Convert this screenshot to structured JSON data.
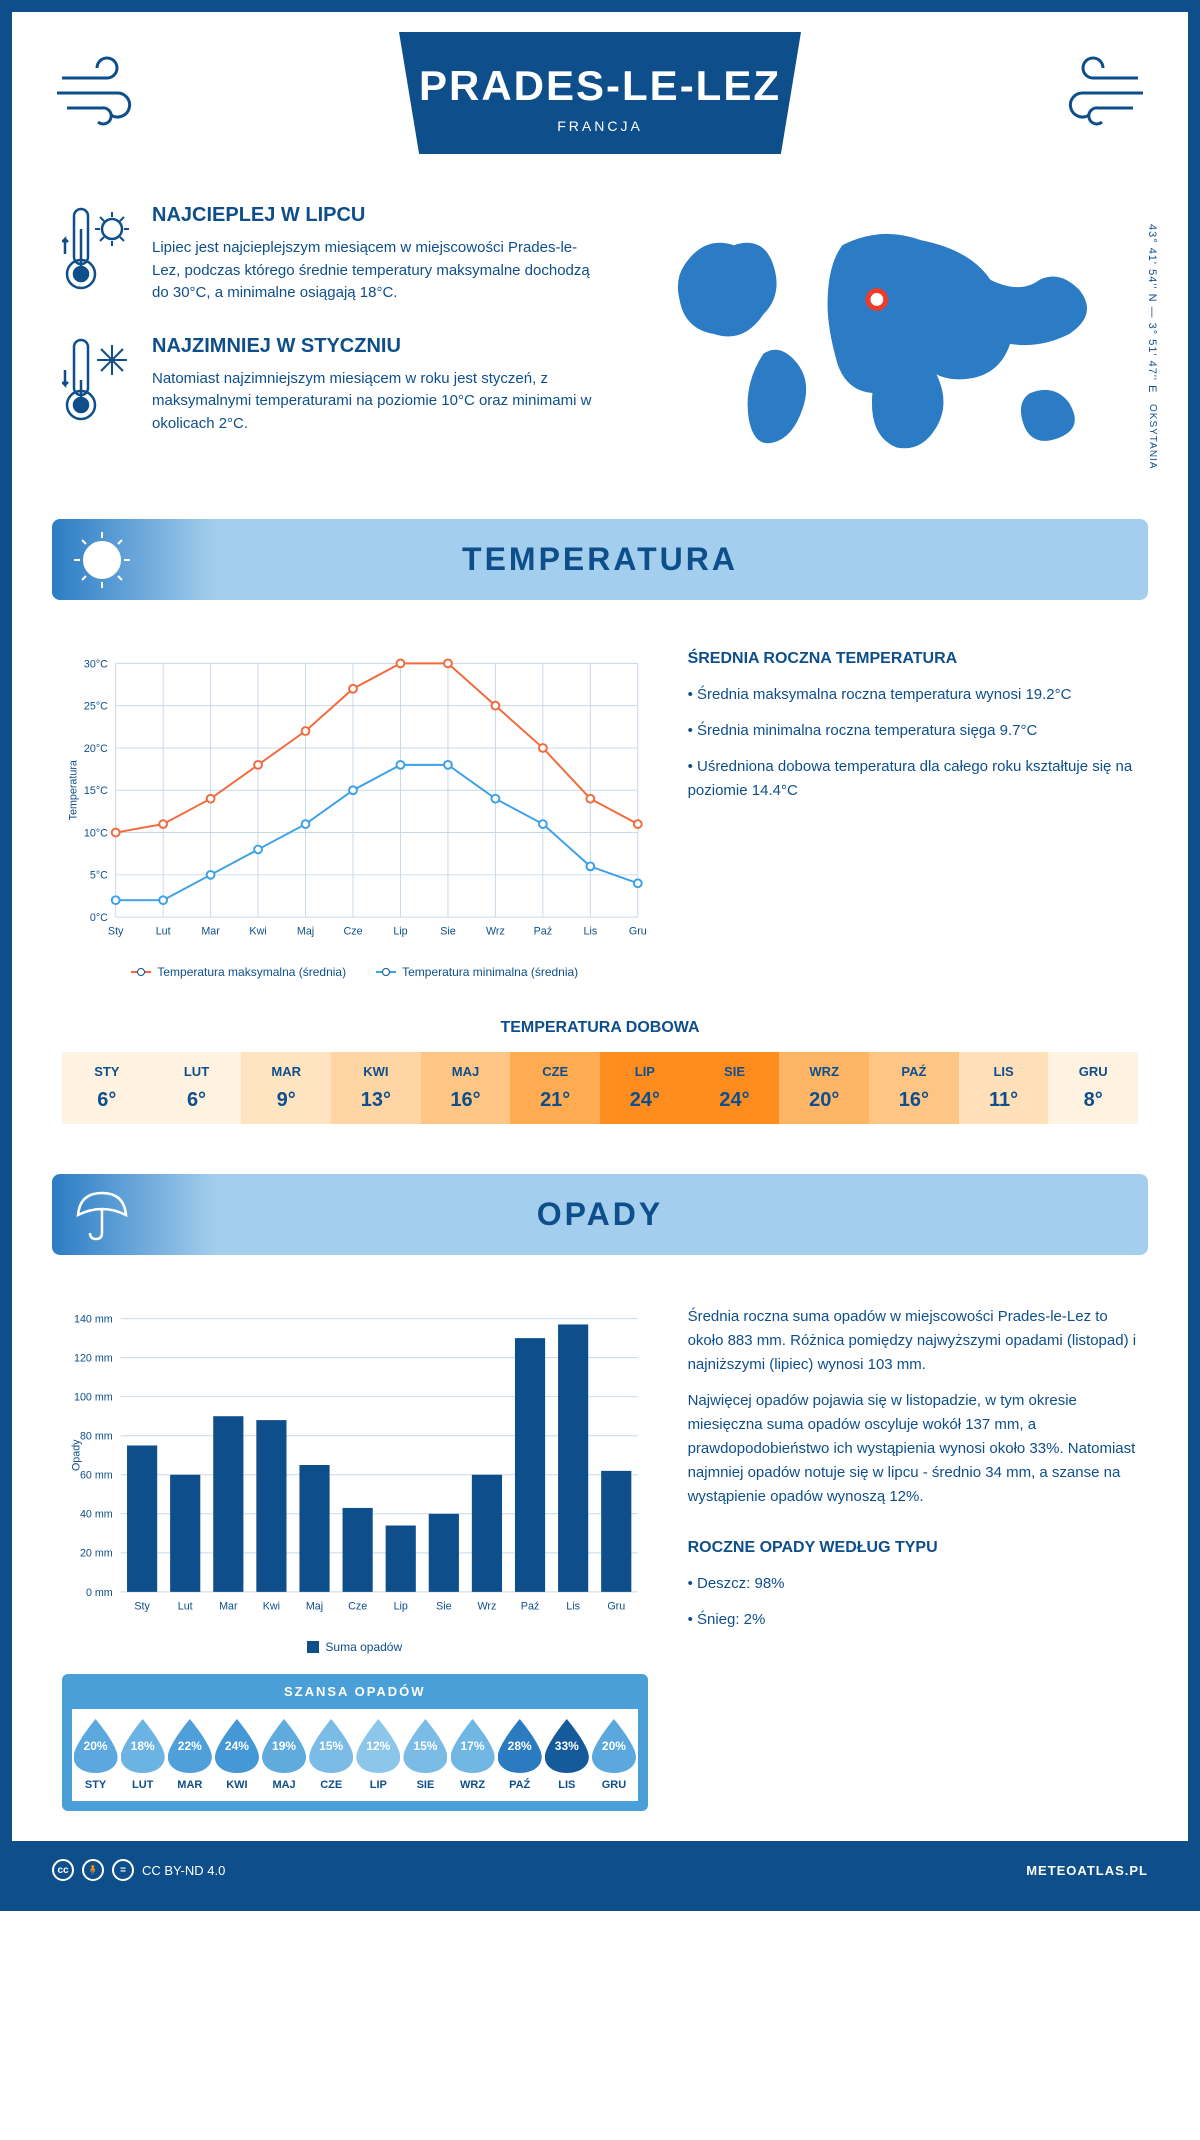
{
  "header": {
    "title": "PRADES-LE-LEZ",
    "subtitle": "FRANCJA"
  },
  "coords": "43° 41' 54'' N — 3° 51' 47'' E",
  "region": "OKSYTANIA",
  "facts": {
    "hot": {
      "title": "NAJCIEPLEJ W LIPCU",
      "text": "Lipiec jest najcieplejszym miesiącem w miejscowości Prades-le-Lez, podczas którego średnie temperatury maksymalne dochodzą do 30°C, a minimalne osiągają 18°C."
    },
    "cold": {
      "title": "NAJZIMNIEJ W STYCZNIU",
      "text": "Natomiast najzimniejszym miesiącem w roku jest styczeń, z maksymalnymi temperaturami na poziomie 10°C oraz minimami w okolicach 2°C."
    }
  },
  "temperature": {
    "section_title": "TEMPERATURA",
    "avg_title": "ŚREDNIA ROCZNA TEMPERATURA",
    "bullets": [
      "• Średnia maksymalna roczna temperatura wynosi 19.2°C",
      "• Średnia minimalna roczna temperatura sięga 9.7°C",
      "• Uśredniona dobowa temperatura dla całego roku kształtuje się na poziomie 14.4°C"
    ],
    "chart": {
      "type": "line",
      "months": [
        "Sty",
        "Lut",
        "Mar",
        "Kwi",
        "Maj",
        "Cze",
        "Lip",
        "Sie",
        "Wrz",
        "Paź",
        "Lis",
        "Gru"
      ],
      "max": [
        10,
        11,
        14,
        18,
        22,
        27,
        30,
        30,
        25,
        20,
        14,
        11
      ],
      "min": [
        2,
        2,
        5,
        8,
        11,
        15,
        18,
        18,
        14,
        11,
        6,
        4
      ],
      "ylim": [
        0,
        30
      ],
      "ytick": 5,
      "max_color": "#f26a3c",
      "min_color": "#3aa0e8",
      "grid_color": "#c8d9eb",
      "bg": "#ffffff",
      "ylabel": "Temperatura",
      "legend_max": "Temperatura maksymalna (średnia)",
      "legend_min": "Temperatura minimalna (średnia)"
    },
    "daily": {
      "title": "TEMPERATURA DOBOWA",
      "months": [
        "STY",
        "LUT",
        "MAR",
        "KWI",
        "MAJ",
        "CZE",
        "LIP",
        "SIE",
        "WRZ",
        "PAŹ",
        "LIS",
        "GRU"
      ],
      "values": [
        "6°",
        "6°",
        "9°",
        "13°",
        "16°",
        "21°",
        "24°",
        "24°",
        "20°",
        "16°",
        "11°",
        "8°"
      ],
      "colors": [
        "#fff2e0",
        "#fff2e0",
        "#ffe4c2",
        "#ffd5a3",
        "#ffc585",
        "#ffab52",
        "#ff8c1f",
        "#ff8c1f",
        "#ffb566",
        "#ffc585",
        "#ffe0b8",
        "#fff2e0"
      ]
    }
  },
  "opady": {
    "section_title": "OPADY",
    "text1": "Średnia roczna suma opadów w miejscowości Prades-le-Lez to około 883 mm. Różnica pomiędzy najwyższymi opadami (listopad) i najniższymi (lipiec) wynosi 103 mm.",
    "text2": "Najwięcej opadów pojawia się w listopadzie, w tym okresie miesięczna suma opadów oscyluje wokół 137 mm, a prawdopodobieństwo ich wystąpienia wynosi około 33%. Natomiast najmniej opadów notuje się w lipcu - średnio 34 mm, a szanse na wystąpienie opadów wynoszą 12%.",
    "chart": {
      "type": "bar",
      "months": [
        "Sty",
        "Lut",
        "Mar",
        "Kwi",
        "Maj",
        "Cze",
        "Lip",
        "Sie",
        "Wrz",
        "Paź",
        "Lis",
        "Gru"
      ],
      "values": [
        75,
        60,
        90,
        88,
        65,
        43,
        34,
        40,
        60,
        130,
        137,
        62
      ],
      "ylim": [
        0,
        140
      ],
      "ytick": 20,
      "bar_color": "#0e4f8b",
      "grid_color": "#c8d9eb",
      "ylabel": "Opady",
      "legend": "Suma opadów"
    },
    "szansa": {
      "title": "SZANSA OPADÓW",
      "months": [
        "STY",
        "LUT",
        "MAR",
        "KWI",
        "MAJ",
        "CZE",
        "LIP",
        "SIE",
        "WRZ",
        "PAŹ",
        "LIS",
        "GRU"
      ],
      "values": [
        "20%",
        "18%",
        "22%",
        "24%",
        "19%",
        "15%",
        "12%",
        "15%",
        "17%",
        "28%",
        "33%",
        "20%"
      ],
      "colors": [
        "#5aa8dd",
        "#6bb3e2",
        "#4fa0da",
        "#4598d6",
        "#5fabde",
        "#7abce5",
        "#8cc7ea",
        "#7abce5",
        "#70b7e3",
        "#2a7bc0",
        "#155a9a",
        "#5aa8dd"
      ]
    },
    "type_title": "ROCZNE OPADY WEDŁUG TYPU",
    "type_bullets": [
      "• Deszcz: 98%",
      "• Śnieg: 2%"
    ]
  },
  "footer": {
    "license": "CC BY-ND 4.0",
    "site": "METEOATLAS.PL"
  }
}
